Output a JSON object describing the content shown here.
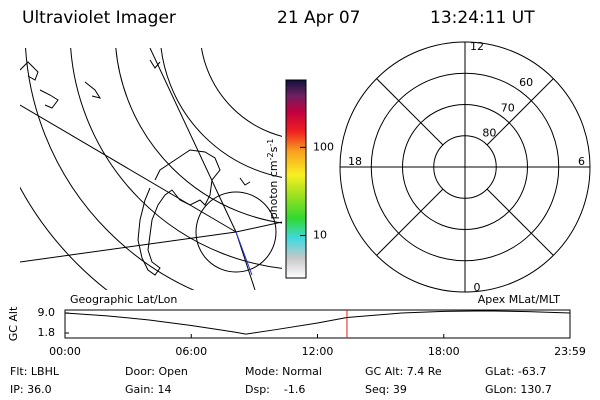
{
  "header": {
    "title": "Ultraviolet Imager",
    "date": "21 Apr 07",
    "time": "13:24:11 UT"
  },
  "colorbar": {
    "label_parts": [
      "photon cm",
      "-2",
      "s",
      "-1"
    ],
    "clim": [
      3.3,
      580
    ],
    "ticks": [
      10,
      100
    ],
    "log": true
  },
  "polar": {
    "latlim": [
      90,
      50
    ],
    "lat_ticks": [
      80,
      70,
      60
    ],
    "mlt_ticks": [
      0,
      6,
      12,
      18
    ]
  },
  "chart_data": {
    "type": "line",
    "y_label": "GC Alt",
    "left_label": "Geographic Lat/Lon",
    "right_label": "Apex MLat/MLT",
    "x": [
      0,
      2,
      4,
      6,
      8,
      8.6,
      10,
      12,
      13.4,
      16,
      18,
      20,
      22,
      24
    ],
    "values": [
      9.0,
      8.0,
      6.5,
      4.5,
      2.2,
      1.4,
      3.0,
      5.4,
      7.4,
      9.0,
      9.6,
      9.8,
      9.5,
      9.0
    ],
    "color": "#000000",
    "marker_x": 13.4,
    "marker_color": "#e02020",
    "xlim": [
      0,
      24
    ],
    "ylim": [
      0,
      10.1
    ],
    "xticks": [
      {
        "value": 0,
        "label": "00:00"
      },
      {
        "value": 6,
        "label": "06:00"
      },
      {
        "value": 12,
        "label": "12:00"
      },
      {
        "value": 18,
        "label": "18:00"
      },
      {
        "value": 24,
        "label": "23:59"
      }
    ],
    "yticks": [
      {
        "value": 1.8,
        "label": "1.8"
      },
      {
        "value": 9.0,
        "label": "9.0"
      }
    ]
  },
  "info": [
    [
      "Flt: LBHL",
      "IP: 36.0"
    ],
    [
      "Door: Open",
      "Gain: 14"
    ],
    [
      "Mode: Normal",
      "Dsp:    -1.6"
    ],
    [
      "GC Alt: 7.4 Re",
      "Seq: 39"
    ],
    [
      "GLat: -63.7",
      "GLon: 130.7"
    ]
  ]
}
